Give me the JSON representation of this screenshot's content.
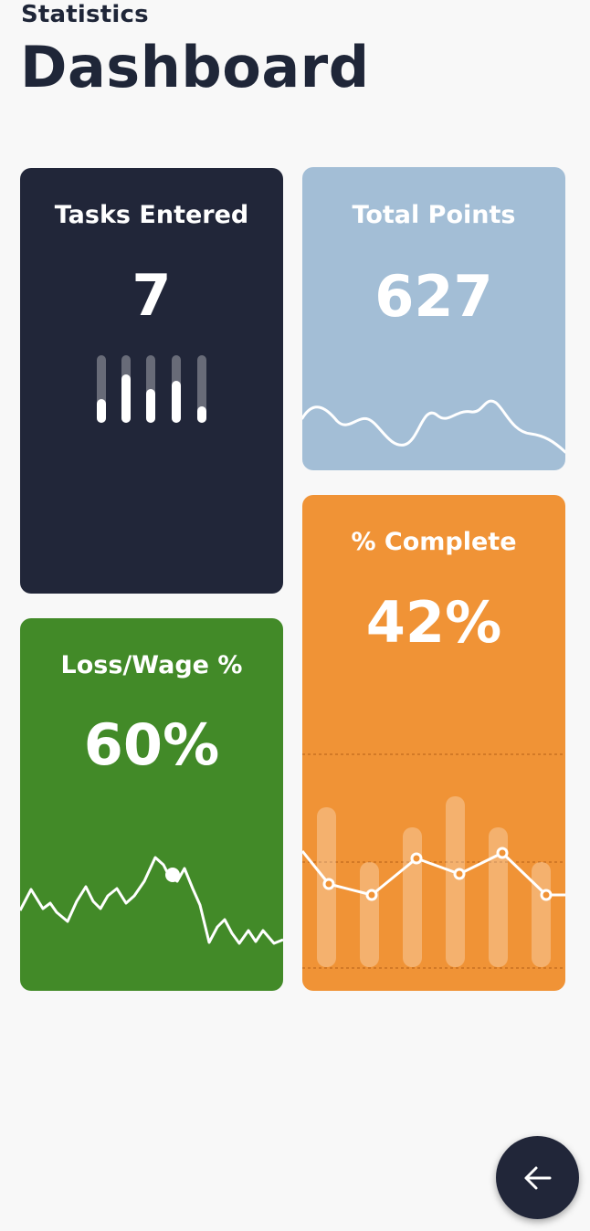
{
  "header": {
    "subtitle": "Statistics",
    "title": "Dashboard"
  },
  "cards": {
    "tasks": {
      "label": "Tasks Entered",
      "value": "7",
      "color": "#212639",
      "bar_levels": [
        0.35,
        0.72,
        0.5,
        0.62,
        0.25
      ]
    },
    "points": {
      "label": "Total Points",
      "value": "627",
      "color": "#a3bed6"
    },
    "loss": {
      "label": "Loss/Wage %",
      "value": "60%",
      "color": "#428a28"
    },
    "complete": {
      "label": "% Complete",
      "value": "42%",
      "color": "#f09336"
    }
  },
  "fab": {
    "icon": "arrow-left-icon",
    "color": "#212639"
  }
}
